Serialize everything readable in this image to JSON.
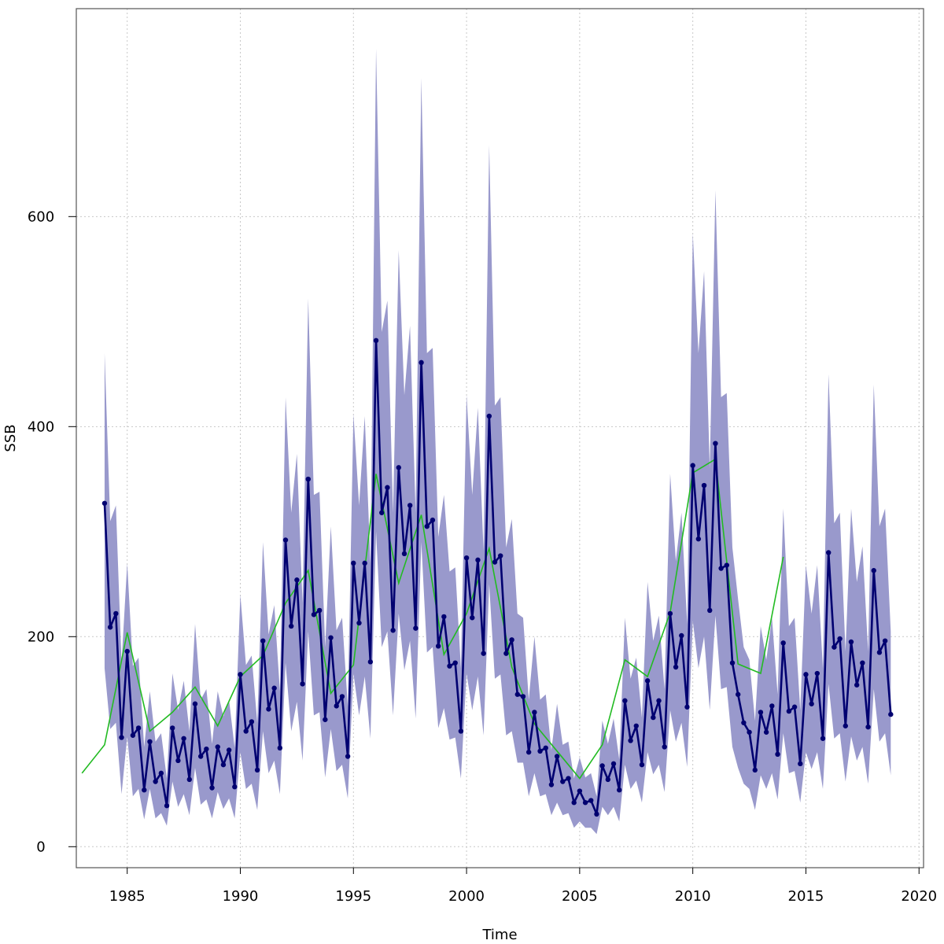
{
  "chart_data": {
    "type": "line",
    "title": "",
    "xlabel": "Time",
    "ylabel": "SSB",
    "xlim": [
      1982.75,
      2020.2
    ],
    "ylim": [
      -20,
      798
    ],
    "x_ticks": [
      1985,
      1990,
      1995,
      2000,
      2005,
      2010,
      2015,
      2020
    ],
    "y_ticks": [
      0,
      200,
      400,
      600
    ],
    "grid": true,
    "legend": "none",
    "colors": {
      "estimate": "#000070",
      "band": "#9999CC",
      "observed": "#22BB22",
      "grid": "#C8C8C8",
      "frame": "#555555"
    },
    "series": [
      {
        "kind": "estimate_with_band",
        "x": [
          1984,
          1984.25,
          1984.5,
          1984.75,
          1985,
          1985.25,
          1985.5,
          1985.75,
          1986,
          1986.25,
          1986.5,
          1986.75,
          1987,
          1987.25,
          1987.5,
          1987.75,
          1988,
          1988.25,
          1988.5,
          1988.75,
          1989,
          1989.25,
          1989.5,
          1989.75,
          1990,
          1990.25,
          1990.5,
          1990.75,
          1991,
          1991.25,
          1991.5,
          1991.75,
          1992,
          1992.25,
          1992.5,
          1992.75,
          1993,
          1993.25,
          1993.5,
          1993.75,
          1994,
          1994.25,
          1994.5,
          1994.75,
          1995,
          1995.25,
          1995.5,
          1995.75,
          1996,
          1996.25,
          1996.5,
          1996.75,
          1997,
          1997.25,
          1997.5,
          1997.75,
          1998,
          1998.25,
          1998.5,
          1998.75,
          1999,
          1999.25,
          1999.5,
          1999.75,
          2000,
          2000.25,
          2000.5,
          2000.75,
          2001,
          2001.25,
          2001.5,
          2001.75,
          2002,
          2002.25,
          2002.5,
          2002.75,
          2003,
          2003.25,
          2003.5,
          2003.75,
          2004,
          2004.25,
          2004.5,
          2004.75,
          2005,
          2005.25,
          2005.5,
          2005.75,
          2006,
          2006.25,
          2006.5,
          2006.75,
          2007,
          2007.25,
          2007.5,
          2007.75,
          2008,
          2008.25,
          2008.5,
          2008.75,
          2009,
          2009.25,
          2009.5,
          2009.75,
          2010,
          2010.25,
          2010.5,
          2010.75,
          2011,
          2011.25,
          2011.5,
          2011.75,
          2012,
          2012.25,
          2012.5,
          2012.75,
          2013,
          2013.25,
          2013.5,
          2013.75,
          2014,
          2014.25,
          2014.5,
          2014.75,
          2015,
          2015.25,
          2015.5,
          2015.75,
          2016,
          2016.25,
          2016.5,
          2016.75,
          2017,
          2017.25,
          2017.5,
          2017.75,
          2018,
          2018.25,
          2018.5,
          2018.75
        ],
        "y": [
          327,
          209,
          222,
          104,
          186,
          106,
          113,
          54,
          100,
          62,
          70,
          39,
          113,
          82,
          103,
          64,
          136,
          86,
          93,
          56,
          95,
          78,
          92,
          57,
          164,
          110,
          119,
          73,
          196,
          131,
          151,
          94,
          292,
          210,
          254,
          155,
          350,
          221,
          225,
          121,
          199,
          134,
          143,
          86,
          270,
          213,
          270,
          176,
          482,
          318,
          342,
          206,
          361,
          279,
          325,
          208,
          461,
          305,
          311,
          191,
          219,
          172,
          175,
          110,
          275,
          218,
          273,
          184,
          410,
          271,
          277,
          184,
          197,
          145,
          143,
          90,
          128,
          91,
          94,
          59,
          86,
          62,
          65,
          42,
          53,
          42,
          44,
          31,
          77,
          64,
          79,
          54,
          139,
          101,
          115,
          78,
          158,
          123,
          139,
          95,
          222,
          171,
          201,
          133,
          363,
          293,
          344,
          225,
          384,
          265,
          268,
          175,
          145,
          118,
          109,
          73,
          128,
          109,
          134,
          88,
          194,
          129,
          133,
          79,
          164,
          136,
          165,
          103,
          280,
          190,
          198,
          115,
          195,
          154,
          175,
          114,
          263,
          185,
          196,
          126
        ],
        "lower": [
          170,
          112,
          118,
          50,
          105,
          48,
          55,
          26,
          55,
          27,
          32,
          20,
          62,
          38,
          50,
          30,
          75,
          40,
          45,
          27,
          52,
          36,
          46,
          27,
          90,
          55,
          60,
          35,
          110,
          70,
          82,
          50,
          175,
          110,
          138,
          82,
          205,
          125,
          128,
          66,
          112,
          72,
          78,
          46,
          165,
          125,
          162,
          103,
          300,
          190,
          205,
          125,
          222,
          168,
          196,
          122,
          290,
          185,
          190,
          113,
          132,
          102,
          104,
          65,
          165,
          130,
          162,
          106,
          250,
          160,
          164,
          106,
          110,
          80,
          80,
          48,
          70,
          48,
          50,
          30,
          42,
          30,
          32,
          18,
          24,
          18,
          18,
          12,
          38,
          30,
          38,
          24,
          78,
          55,
          63,
          42,
          90,
          69,
          78,
          52,
          130,
          100,
          118,
          76,
          215,
          170,
          200,
          130,
          220,
          150,
          152,
          95,
          75,
          60,
          55,
          35,
          68,
          55,
          70,
          45,
          108,
          70,
          72,
          42,
          90,
          74,
          90,
          55,
          155,
          103,
          108,
          62,
          105,
          82,
          95,
          60,
          150,
          100,
          108,
          68
        ],
        "upper": [
          470,
          310,
          325,
          175,
          270,
          172,
          180,
          95,
          148,
          100,
          108,
          65,
          165,
          130,
          158,
          110,
          212,
          140,
          150,
          98,
          148,
          124,
          140,
          94,
          240,
          173,
          182,
          118,
          290,
          202,
          230,
          148,
          428,
          318,
          374,
          232,
          522,
          335,
          338,
          190,
          305,
          206,
          218,
          134,
          412,
          325,
          410,
          270,
          760,
          490,
          520,
          318,
          568,
          430,
          496,
          318,
          732,
          470,
          475,
          295,
          335,
          262,
          266,
          170,
          430,
          335,
          418,
          282,
          668,
          420,
          428,
          285,
          312,
          222,
          218,
          140,
          200,
          140,
          145,
          92,
          136,
          97,
          100,
          65,
          85,
          66,
          70,
          48,
          120,
          98,
          122,
          83,
          218,
          160,
          180,
          123,
          252,
          196,
          220,
          150,
          355,
          272,
          318,
          212,
          584,
          470,
          548,
          360,
          625,
          428,
          432,
          285,
          236,
          190,
          178,
          120,
          210,
          178,
          218,
          145,
          322,
          210,
          218,
          130,
          268,
          222,
          268,
          170,
          450,
          308,
          318,
          186,
          322,
          252,
          286,
          186,
          440,
          305,
          322,
          205
        ]
      },
      {
        "kind": "observed",
        "x": [
          1983,
          1984,
          1985,
          1986,
          1987,
          1988,
          1989,
          1990,
          1991,
          1992,
          1993,
          1994,
          1995,
          1996,
          1997,
          1998,
          1999,
          2000,
          2001,
          2002,
          2003,
          2004,
          2005,
          2006,
          2007,
          2008,
          2009,
          2010,
          2011,
          2012,
          2013,
          2014
        ],
        "y": [
          70,
          97,
          204,
          110,
          128,
          152,
          115,
          162,
          182,
          232,
          263,
          146,
          173,
          355,
          251,
          316,
          183,
          222,
          284,
          171,
          117,
          91,
          65,
          97,
          178,
          162,
          223,
          356,
          369,
          174,
          165,
          276
        ]
      }
    ]
  }
}
